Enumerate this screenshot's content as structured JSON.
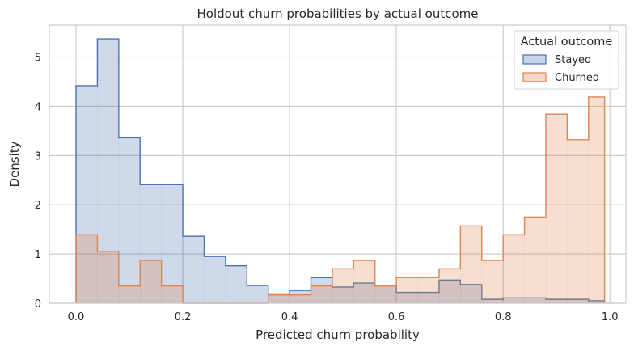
{
  "chart_data": {
    "type": "histogram",
    "title": "Holdout churn probabilities by actual outcome",
    "xlabel": "Predicted churn probability",
    "ylabel": "Density",
    "xlim": [
      -0.05,
      1.03
    ],
    "ylim": [
      0,
      5.65
    ],
    "x_ticks": [
      0.0,
      0.2,
      0.4,
      0.6,
      0.8,
      1.0
    ],
    "x_tick_labels": [
      "0.0",
      "0.2",
      "0.4",
      "0.6",
      "0.8",
      "1.0"
    ],
    "y_ticks": [
      0,
      1,
      2,
      3,
      4,
      5
    ],
    "y_tick_labels": [
      "0",
      "1",
      "2",
      "3",
      "4",
      "5"
    ],
    "grid": true,
    "legend": {
      "title": "Actual outcome",
      "placement": "top-right",
      "entries": [
        "Stayed",
        "Churned"
      ]
    },
    "series": [
      {
        "name": "Stayed",
        "color": "#4c72b0",
        "fill": "#c8d3e9",
        "bin_edges": [
          0.0,
          0.04,
          0.08,
          0.12,
          0.16,
          0.2,
          0.24,
          0.28,
          0.32,
          0.36,
          0.4,
          0.44,
          0.48,
          0.52,
          0.56,
          0.6,
          0.64,
          0.68,
          0.72,
          0.76,
          0.8,
          0.84,
          0.88,
          0.92,
          0.96,
          0.99
        ],
        "values": [
          4.42,
          5.37,
          3.36,
          2.41,
          2.41,
          1.36,
          0.95,
          0.76,
          0.36,
          0.19,
          0.26,
          0.52,
          0.33,
          0.41,
          0.36,
          0.22,
          0.22,
          0.47,
          0.38,
          0.08,
          0.11,
          0.11,
          0.08,
          0.08,
          0.05
        ]
      },
      {
        "name": "Churned",
        "color": "#dd8452",
        "fill": "#f6d6c6",
        "bin_edges": [
          0.0,
          0.04,
          0.08,
          0.12,
          0.16,
          0.2,
          0.24,
          0.28,
          0.32,
          0.36,
          0.4,
          0.44,
          0.48,
          0.52,
          0.56,
          0.6,
          0.64,
          0.68,
          0.72,
          0.76,
          0.8,
          0.84,
          0.88,
          0.92,
          0.96,
          0.99
        ],
        "values": [
          1.39,
          1.05,
          0.35,
          0.87,
          0.35,
          0.0,
          0.0,
          0.0,
          0.0,
          0.17,
          0.17,
          0.35,
          0.7,
          0.87,
          0.35,
          0.52,
          0.52,
          0.7,
          1.57,
          0.87,
          1.39,
          1.75,
          3.84,
          3.32,
          4.19
        ]
      }
    ]
  }
}
